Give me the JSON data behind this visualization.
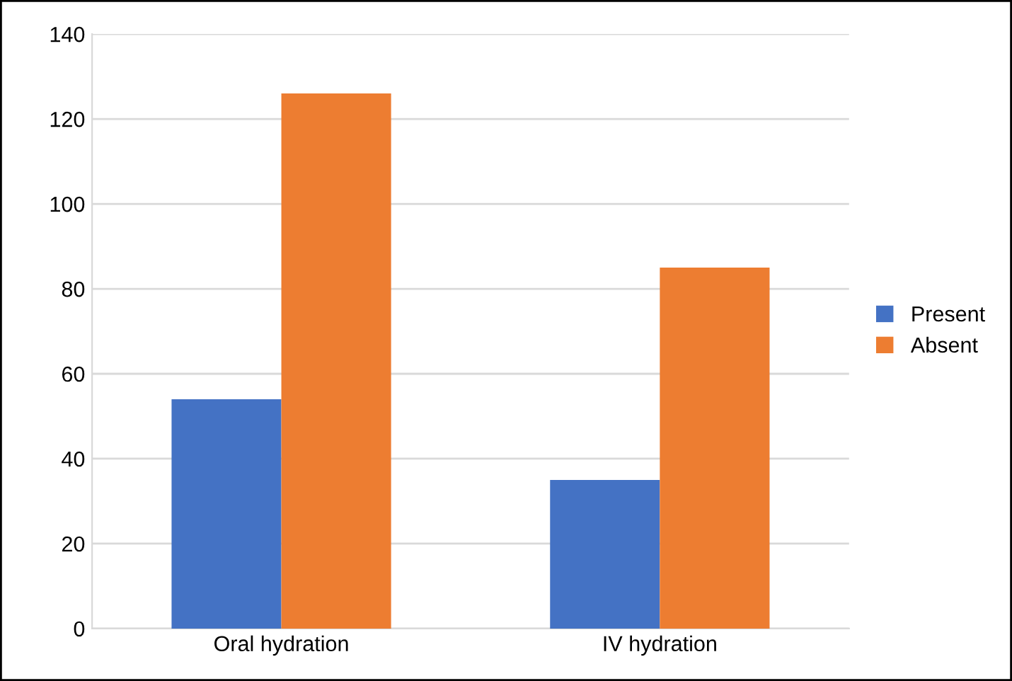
{
  "chart_data": {
    "type": "bar",
    "categories": [
      "Oral hydration",
      "IV hydration"
    ],
    "series": [
      {
        "name": "Present",
        "color": "#4472c4",
        "values": [
          54,
          35
        ]
      },
      {
        "name": "Absent",
        "color": "#ed7d31",
        "values": [
          126,
          85
        ]
      }
    ],
    "ylim": [
      0,
      140
    ],
    "yticks": [
      0,
      20,
      40,
      60,
      80,
      100,
      120,
      140
    ],
    "grid": "y",
    "legend": "right"
  }
}
